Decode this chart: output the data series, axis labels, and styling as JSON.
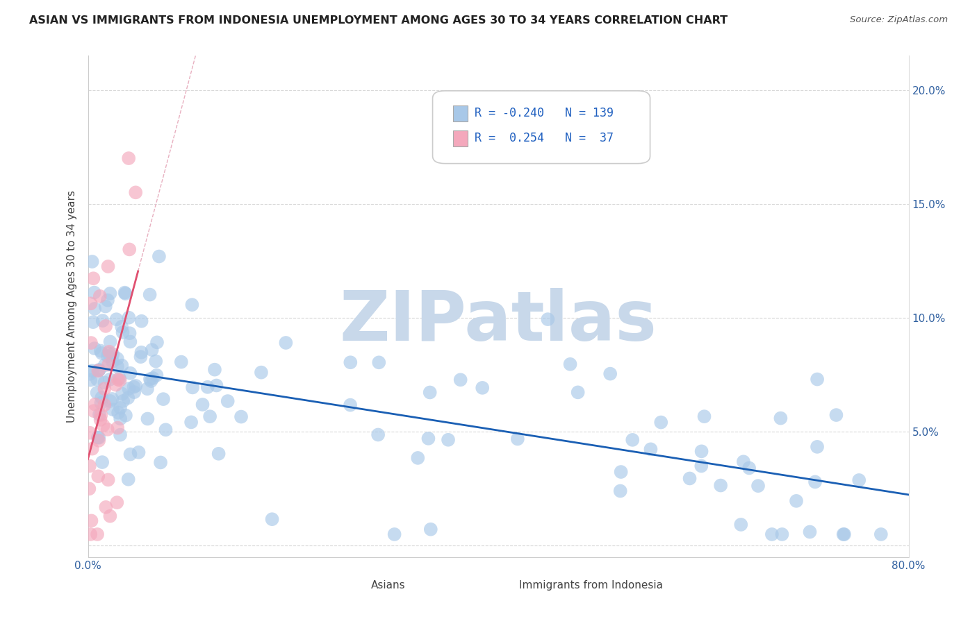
{
  "title": "ASIAN VS IMMIGRANTS FROM INDONESIA UNEMPLOYMENT AMONG AGES 30 TO 34 YEARS CORRELATION CHART",
  "source": "Source: ZipAtlas.com",
  "ylabel": "Unemployment Among Ages 30 to 34 years",
  "xlim": [
    0.0,
    0.8
  ],
  "ylim": [
    -0.005,
    0.215
  ],
  "xticks": [
    0.0,
    0.1,
    0.2,
    0.3,
    0.4,
    0.5,
    0.6,
    0.7,
    0.8
  ],
  "xticklabels": [
    "0.0%",
    "",
    "",
    "",
    "",
    "",
    "",
    "",
    "80.0%"
  ],
  "yticks": [
    0.0,
    0.05,
    0.1,
    0.15,
    0.2
  ],
  "yticklabels_right": [
    "",
    "5.0%",
    "10.0%",
    "15.0%",
    "20.0%"
  ],
  "asian_R": -0.24,
  "asian_N": 139,
  "indo_R": 0.254,
  "indo_N": 37,
  "blue_color": "#a8c8e8",
  "pink_color": "#f4a8bc",
  "blue_line_color": "#1a5fb4",
  "pink_line_color": "#e05070",
  "pink_diag_color": "#e8a0b0",
  "legend_blue_color": "#a8c8e8",
  "legend_pink_color": "#f4a8bc",
  "watermark": "ZIPatlas",
  "watermark_color": "#c8d8ea",
  "background_color": "#ffffff",
  "grid_color": "#d8d8d8",
  "title_color": "#222222",
  "axis_label_color": "#444444",
  "tick_label_color": "#3060a0",
  "legend_text_color": "#2060c0",
  "asian_seed": 42,
  "indo_seed": 7
}
